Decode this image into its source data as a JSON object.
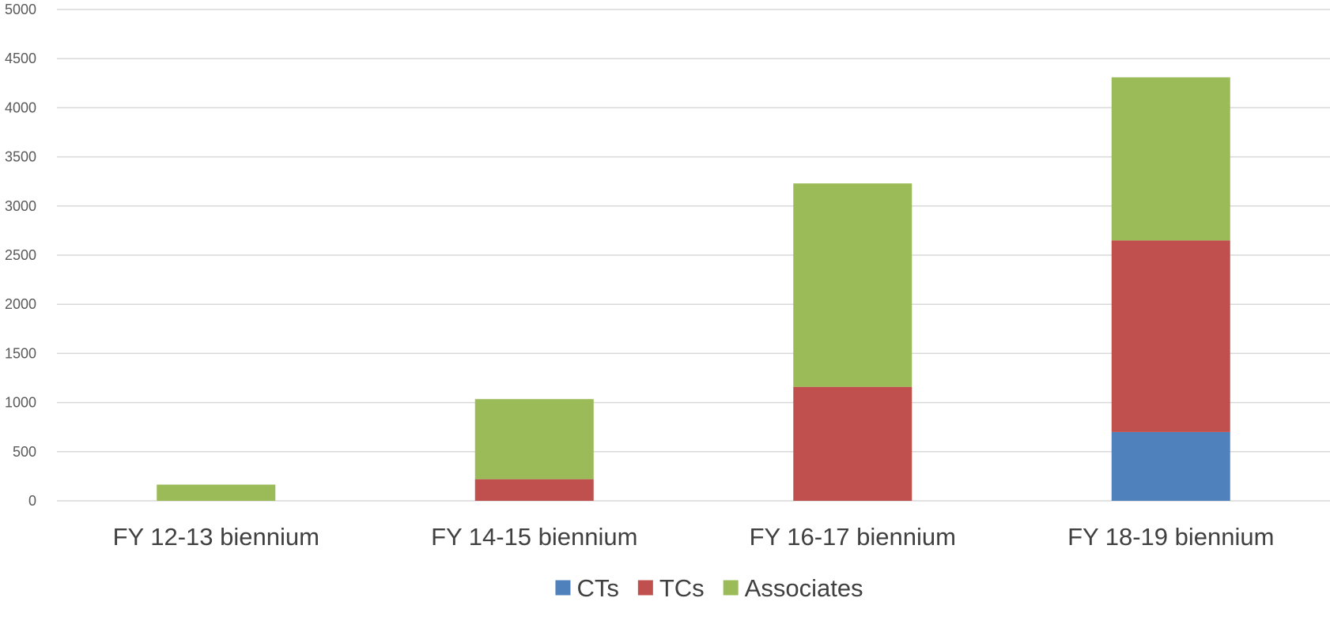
{
  "chart_data": {
    "type": "bar",
    "stacked": true,
    "title": "",
    "xlabel": "",
    "ylabel": "",
    "categories": [
      "FY 12-13 biennium",
      "FY 14-15 biennium",
      "FY 16-17 biennium",
      "FY 18-19 biennium"
    ],
    "series": [
      {
        "name": "CTs",
        "color": "#4f81bd",
        "values": [
          0,
          0,
          0,
          700
        ]
      },
      {
        "name": "TCs",
        "color": "#c0504d",
        "values": [
          0,
          220,
          1160,
          1950
        ]
      },
      {
        "name": "Associates",
        "color": "#9bbb59",
        "values": [
          165,
          815,
          2070,
          1660
        ]
      }
    ],
    "ylim": [
      0,
      5000
    ],
    "yticks": [
      0,
      500,
      1000,
      1500,
      2000,
      2500,
      3000,
      3500,
      4000,
      4500,
      5000
    ],
    "grid": true,
    "legend_position": "bottom"
  }
}
